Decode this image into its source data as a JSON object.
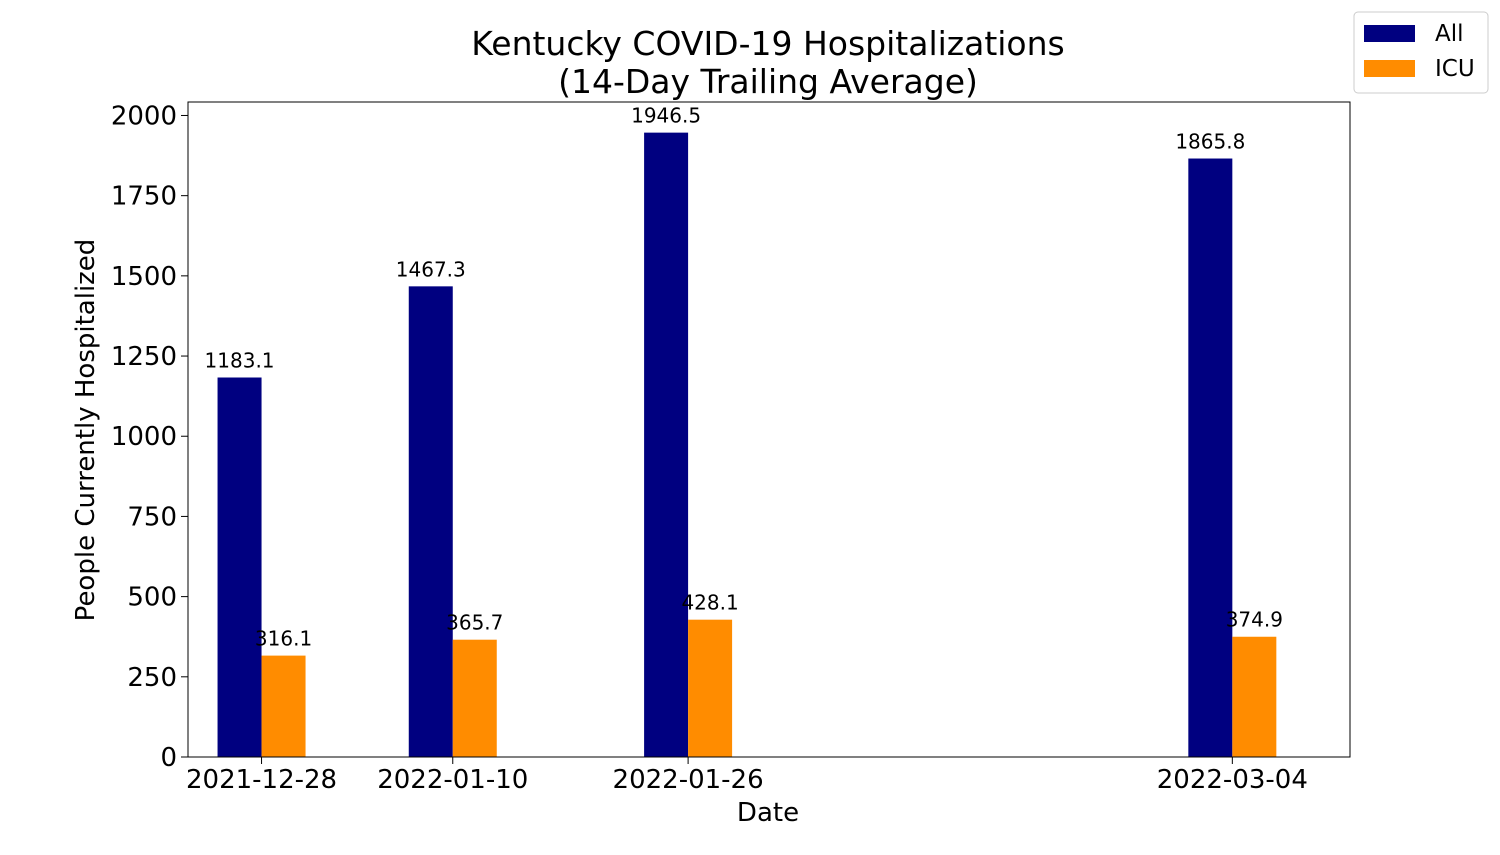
{
  "chart_data": {
    "type": "bar",
    "title_lines": [
      "Kentucky COVID-19 Hospitalizations",
      "(14-Day Trailing Average)"
    ],
    "xlabel": "Date",
    "ylabel": "People Currently Hospitalized",
    "categories": [
      "2021-12-28",
      "2022-01-10",
      "2022-01-26",
      "2022-03-04"
    ],
    "category_day_offsets": [
      0,
      13,
      29,
      66
    ],
    "x_range_days": [
      -5,
      74
    ],
    "ylim": [
      0,
      2042
    ],
    "yticks": [
      0,
      250,
      500,
      750,
      1000,
      1250,
      1500,
      1750,
      2000
    ],
    "series": [
      {
        "name": "All",
        "color": "#000080",
        "values": [
          1183.1,
          1467.3,
          1946.5,
          1865.8
        ],
        "labels": [
          "1183.1",
          "1467.3",
          "1946.5",
          "1865.8"
        ]
      },
      {
        "name": "ICU",
        "color": "#ff8c00",
        "values": [
          316.1,
          365.7,
          428.1,
          374.9
        ],
        "labels": [
          "316.1",
          "365.7",
          "428.1",
          "374.9"
        ]
      }
    ],
    "legend_position": "top-right",
    "grid": false
  }
}
